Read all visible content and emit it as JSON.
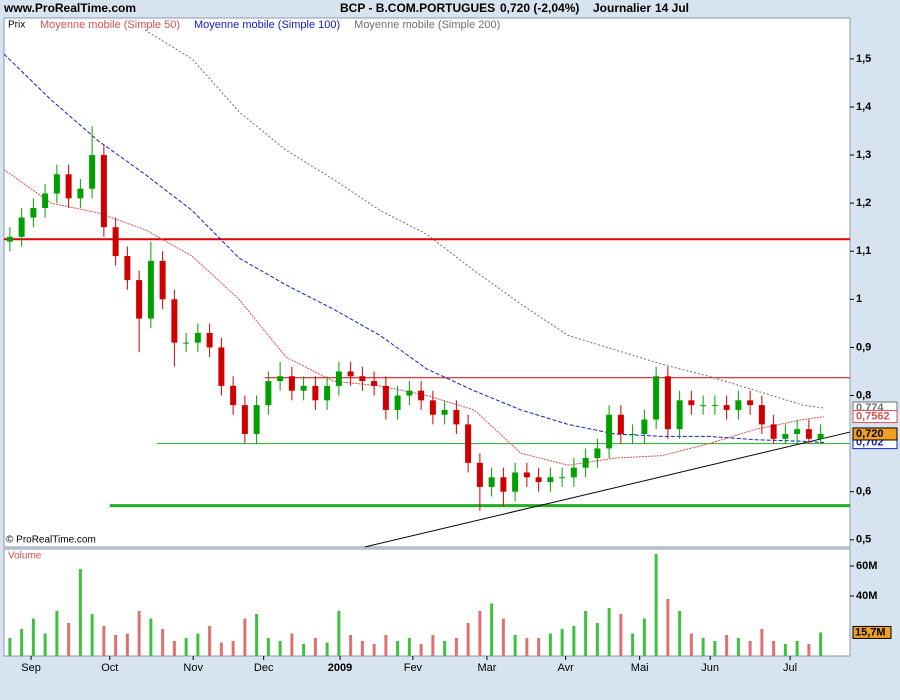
{
  "header": {
    "site": "www.ProRealTime.com",
    "instrument": "BCP - B.COM.PORTUGUES",
    "quote": "0,720 (-2,04%)",
    "period": "Journalier",
    "date": "14 Jul"
  },
  "chart_data": [
    {
      "type": "candlestick",
      "label": "Prix",
      "watermark": "© ProRealTime.com",
      "xlim": [
        0,
        72
      ],
      "ylim": [
        0.485,
        1.585
      ],
      "yticks": [
        {
          "value": 0.5,
          "label": "0,5"
        },
        {
          "value": 0.6,
          "label": "0,6"
        },
        {
          "value": 0.8,
          "label": "0,8"
        },
        {
          "value": 0.9,
          "label": "0,9"
        },
        1,
        {
          "value": 1.1,
          "label": "1,1"
        },
        {
          "value": 1.2,
          "label": "1,2"
        },
        {
          "value": 1.3,
          "label": "1,3"
        },
        {
          "value": 1.4,
          "label": "1,4"
        },
        {
          "value": 1.5,
          "label": "1,5"
        }
      ],
      "up_color": "#00a000",
      "down_color": "#d00000",
      "open": [
        1.12,
        1.13,
        1.17,
        1.19,
        1.22,
        1.26,
        1.21,
        1.23,
        1.3,
        1.15,
        1.09,
        1.04,
        0.96,
        1.08,
        1.0,
        0.91,
        0.91,
        0.93,
        0.9,
        0.82,
        0.78,
        0.72,
        0.78,
        0.83,
        0.84,
        0.81,
        0.82,
        0.79,
        0.82,
        0.85,
        0.84,
        0.83,
        0.82,
        0.77,
        0.8,
        0.81,
        0.79,
        0.76,
        0.77,
        0.74,
        0.66,
        0.61,
        0.63,
        0.6,
        0.64,
        0.63,
        0.62,
        0.63,
        0.63,
        0.65,
        0.67,
        0.69,
        0.76,
        0.72,
        0.72,
        0.75,
        0.84,
        0.73,
        0.79,
        0.78,
        0.78,
        0.78,
        0.77,
        0.79,
        0.78,
        0.74,
        0.71,
        0.72,
        0.73,
        0.71
      ],
      "high": [
        1.15,
        1.19,
        1.21,
        1.24,
        1.28,
        1.28,
        1.25,
        1.36,
        1.32,
        1.17,
        1.11,
        1.06,
        1.12,
        1.1,
        1.02,
        0.93,
        0.95,
        0.95,
        0.92,
        0.84,
        0.8,
        0.8,
        0.85,
        0.87,
        0.86,
        0.84,
        0.84,
        0.84,
        0.87,
        0.87,
        0.86,
        0.85,
        0.84,
        0.82,
        0.83,
        0.83,
        0.81,
        0.79,
        0.79,
        0.76,
        0.68,
        0.65,
        0.65,
        0.66,
        0.66,
        0.65,
        0.65,
        0.65,
        0.67,
        0.69,
        0.71,
        0.78,
        0.78,
        0.74,
        0.77,
        0.86,
        0.86,
        0.81,
        0.81,
        0.8,
        0.8,
        0.8,
        0.81,
        0.81,
        0.8,
        0.76,
        0.74,
        0.75,
        0.75,
        0.74
      ],
      "low": [
        1.1,
        1.11,
        1.15,
        1.17,
        1.2,
        1.19,
        1.19,
        1.21,
        1.13,
        1.07,
        1.02,
        0.89,
        0.94,
        0.98,
        0.86,
        0.89,
        0.89,
        0.88,
        0.8,
        0.76,
        0.7,
        0.7,
        0.76,
        0.81,
        0.79,
        0.79,
        0.77,
        0.77,
        0.8,
        0.82,
        0.81,
        0.8,
        0.75,
        0.75,
        0.78,
        0.77,
        0.74,
        0.74,
        0.72,
        0.64,
        0.56,
        0.59,
        0.57,
        0.58,
        0.61,
        0.6,
        0.6,
        0.61,
        0.61,
        0.63,
        0.65,
        0.67,
        0.7,
        0.7,
        0.7,
        0.73,
        0.71,
        0.71,
        0.76,
        0.76,
        0.76,
        0.75,
        0.75,
        0.76,
        0.72,
        0.7,
        0.7,
        0.7,
        0.7,
        0.7
      ],
      "close": [
        1.13,
        1.17,
        1.19,
        1.22,
        1.26,
        1.21,
        1.23,
        1.3,
        1.15,
        1.09,
        1.04,
        0.96,
        1.08,
        1.0,
        0.91,
        0.91,
        0.93,
        0.9,
        0.82,
        0.78,
        0.72,
        0.78,
        0.83,
        0.84,
        0.81,
        0.82,
        0.79,
        0.82,
        0.85,
        0.84,
        0.83,
        0.82,
        0.77,
        0.8,
        0.81,
        0.79,
        0.76,
        0.77,
        0.74,
        0.66,
        0.61,
        0.63,
        0.6,
        0.64,
        0.63,
        0.62,
        0.63,
        0.63,
        0.65,
        0.67,
        0.69,
        0.76,
        0.72,
        0.72,
        0.75,
        0.84,
        0.73,
        0.79,
        0.78,
        0.78,
        0.78,
        0.77,
        0.79,
        0.78,
        0.74,
        0.71,
        0.72,
        0.73,
        0.71,
        0.72
      ],
      "overlays": [
        {
          "name": "Moyenne mobile (Simple 50)",
          "color": "#d85050",
          "dash": "2,1",
          "x": [
            0,
            4,
            8,
            12,
            16,
            20,
            24,
            28,
            32,
            36,
            40,
            44,
            48,
            52,
            56,
            60,
            64,
            68,
            69.8
          ],
          "values": [
            1.27,
            1.2,
            1.18,
            1.145,
            1.09,
            1.0,
            0.88,
            0.83,
            0.82,
            0.8,
            0.77,
            0.68,
            0.655,
            0.67,
            0.675,
            0.7,
            0.73,
            0.75,
            0.756
          ]
        },
        {
          "name": "Moyenne mobile (Simple 100)",
          "color": "#1020c0",
          "dash": "4,2",
          "x": [
            0,
            4,
            8,
            12,
            16,
            20,
            24,
            28,
            32,
            36,
            40,
            44,
            48,
            52,
            56,
            60,
            64,
            68,
            69.8
          ],
          "values": [
            1.51,
            1.415,
            1.33,
            1.26,
            1.185,
            1.086,
            1.03,
            0.98,
            0.925,
            0.855,
            0.81,
            0.77,
            0.74,
            0.72,
            0.715,
            0.715,
            0.708,
            0.705,
            0.702
          ]
        },
        {
          "name": "Moyenne mobile (Simple 200)",
          "color": "#707070",
          "dash": "2,2",
          "x": [
            0,
            4,
            8,
            12,
            16,
            20,
            24,
            28,
            32,
            36,
            40,
            44,
            48,
            52,
            56,
            60,
            64,
            68,
            69.8
          ],
          "values": [
            null,
            null,
            null,
            1.56,
            1.5,
            1.39,
            1.31,
            1.25,
            1.185,
            1.135,
            1.06,
            0.99,
            0.925,
            0.895,
            0.865,
            0.84,
            0.81,
            0.78,
            0.774
          ]
        }
      ],
      "hlines": [
        {
          "value": 1.125,
          "x": [
            0,
            72
          ],
          "color": "#e00000",
          "width": 2
        },
        {
          "value": 0.837,
          "x": [
            22.2,
            72
          ],
          "color": "#e00000",
          "width": 1
        },
        {
          "value": 0.7,
          "x": [
            13.0,
            72
          ],
          "color": "#20b020",
          "width": 1
        },
        {
          "value": 0.571,
          "x": [
            9.0,
            72
          ],
          "color": "#20b020",
          "width": 3
        }
      ],
      "trendline": {
        "x": [
          30.7,
          72
        ],
        "values": [
          0.485,
          0.724
        ],
        "color": "#000000"
      },
      "price_labels": [
        {
          "value": 0.774,
          "label": "0,774",
          "color": "#707070",
          "bg": "#ffffff"
        },
        {
          "value": 0.702,
          "label": "0,702",
          "color": "#1020c0",
          "bg": "#ffffff"
        },
        {
          "value": 0.7562,
          "label": "0,7562",
          "color": "#d85050",
          "bg": "#ffffff"
        },
        {
          "value": 0.72,
          "label": "0,720",
          "color": "#000000",
          "bg": "#f0a020"
        }
      ]
    },
    {
      "type": "bar",
      "label": "Volume",
      "xlim": [
        0,
        72
      ],
      "ylim": [
        0,
        71.3
      ],
      "yticks": [
        {
          "value": 40,
          "label": "40M"
        },
        {
          "value": 60,
          "label": "60M"
        }
      ],
      "xticks": [
        {
          "value": 2.3,
          "label": "Sep"
        },
        {
          "value": 9.0,
          "label": "Oct"
        },
        {
          "value": 16.1,
          "label": "Nov"
        },
        {
          "value": 22.1,
          "label": "Dec"
        },
        {
          "value": 28.6,
          "label": "2009"
        },
        {
          "value": 34.8,
          "label": "Fev"
        },
        {
          "value": 41.1,
          "label": "Mar"
        },
        {
          "value": 47.8,
          "label": "Avr"
        },
        {
          "value": 54.1,
          "label": "Mai"
        },
        {
          "value": 60.1,
          "label": "Jun"
        },
        {
          "value": 66.9,
          "label": "Jul"
        }
      ],
      "values": [
        12,
        18,
        25,
        15,
        30,
        22,
        58,
        28,
        20,
        14,
        15,
        30,
        25,
        18,
        10,
        12,
        15,
        20,
        9,
        10,
        25,
        28,
        12,
        10,
        15,
        8,
        12,
        9,
        30,
        14,
        10,
        8,
        14,
        10,
        12,
        8,
        14,
        10,
        12,
        22,
        30,
        35,
        25,
        14,
        12,
        12,
        15,
        18,
        20,
        30,
        22,
        32,
        28,
        15,
        25,
        68,
        38,
        30,
        15,
        12,
        10,
        14,
        12,
        10,
        18,
        10,
        8,
        10,
        8,
        15.7
      ],
      "last_label": "15,7M",
      "last_label_bg": "#f0a020"
    }
  ]
}
